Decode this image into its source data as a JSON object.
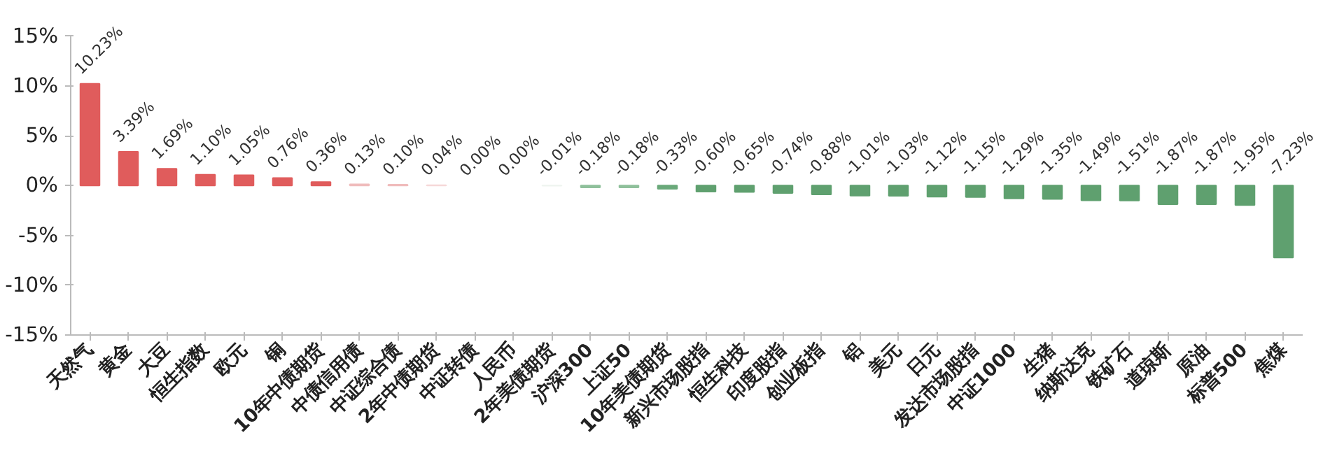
{
  "chart_data": {
    "type": "bar",
    "categories": [
      "天然气",
      "黄金",
      "大豆",
      "恒生指数",
      "欧元",
      "铜",
      "10年中债期货",
      "中债信用债",
      "中证综合债",
      "2年中债期货",
      "中证转债",
      "人民币",
      "2年美债期货",
      "沪深300",
      "上证50",
      "10年美债期货",
      "新兴市场股指",
      "恒生科技",
      "印度股指",
      "创业板指",
      "铝",
      "美元",
      "日元",
      "发达市场股指",
      "中证1000",
      "生猪",
      "纳斯达克",
      "铁矿石",
      "道琼斯",
      "原油",
      "标普500",
      "焦煤"
    ],
    "values": [
      10.23,
      3.39,
      1.69,
      1.1,
      1.05,
      0.76,
      0.36,
      0.13,
      0.1,
      0.04,
      0.0,
      0.0,
      -0.01,
      -0.18,
      -0.18,
      -0.33,
      -0.6,
      -0.65,
      -0.74,
      -0.88,
      -1.01,
      -1.03,
      -1.12,
      -1.15,
      -1.29,
      -1.35,
      -1.49,
      -1.51,
      -1.87,
      -1.87,
      -1.95,
      -7.23
    ],
    "value_labels": [
      "10.23%",
      "3.39%",
      "1.69%",
      "1.10%",
      "1.05%",
      "0.76%",
      "0.36%",
      "0.13%",
      "0.10%",
      "0.04%",
      "0.00%",
      "0.00%",
      "-0.01%",
      "-0.18%",
      "-0.18%",
      "-0.33%",
      "-0.60%",
      "-0.65%",
      "-0.74%",
      "-0.88%",
      "-1.01%",
      "-1.03%",
      "-1.12%",
      "-1.15%",
      "-1.29%",
      "-1.35%",
      "-1.49%",
      "-1.51%",
      "-1.87%",
      "-1.87%",
      "-1.95%",
      "-7.23%"
    ],
    "colors": [
      "#e05c5c",
      "#e05c5c",
      "#e05c5c",
      "#e05c5c",
      "#e05c5c",
      "#e05c5c",
      "#e05c5c",
      "#f0bcbc",
      "#f0bcbc",
      "#f6d8d8",
      "#ffffff",
      "#ffffff",
      "#eef4ef",
      "#8fc09b",
      "#8fc09b",
      "#6aa97a",
      "#5fa06f",
      "#5fa06f",
      "#5fa06f",
      "#5fa06f",
      "#5fa06f",
      "#5fa06f",
      "#5fa06f",
      "#5fa06f",
      "#5fa06f",
      "#5fa06f",
      "#5fa06f",
      "#5fa06f",
      "#5fa06f",
      "#5fa06f",
      "#5fa06f",
      "#5fa06f"
    ],
    "ylim": [
      -15,
      15
    ],
    "yticks": [
      {
        "value": -15,
        "label": "-15%"
      },
      {
        "value": -10,
        "label": "-10%"
      },
      {
        "value": -5,
        "label": "-5%"
      },
      {
        "value": 0,
        "label": "0%"
      },
      {
        "value": 5,
        "label": "5%"
      },
      {
        "value": 10,
        "label": "10%"
      },
      {
        "value": 15,
        "label": "15%"
      }
    ],
    "grid": false
  }
}
